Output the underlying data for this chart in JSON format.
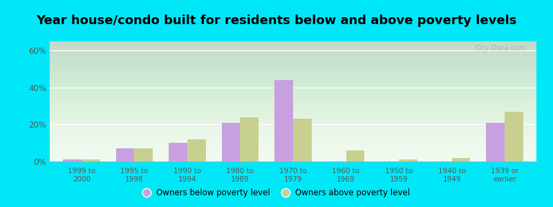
{
  "title": "Year house/condo built for residents below and above poverty levels",
  "categories": [
    "1999 to\n2000",
    "1995 to\n1998",
    "1990 to\n1994",
    "1980 to\n1989",
    "1970 to\n1979",
    "1960 to\n1969",
    "1950 to\n1959",
    "1940 to\n1949",
    "1939 or\nearlier"
  ],
  "below_poverty": [
    1,
    7,
    10,
    21,
    44,
    0,
    0,
    0,
    21
  ],
  "above_poverty": [
    1,
    7,
    12,
    24,
    23,
    6,
    1,
    2,
    27
  ],
  "below_color": "#c8a0e0",
  "above_color": "#c8d090",
  "ylim": [
    0,
    65
  ],
  "yticks": [
    0,
    20,
    40,
    60
  ],
  "ytick_labels": [
    "0%",
    "20%",
    "40%",
    "60%"
  ],
  "outer_bg": "#00e8f8",
  "legend_below": "Owners below poverty level",
  "legend_above": "Owners above poverty level",
  "title_fontsize": 13,
  "bar_width": 0.35,
  "watermark": "City-Data.com"
}
